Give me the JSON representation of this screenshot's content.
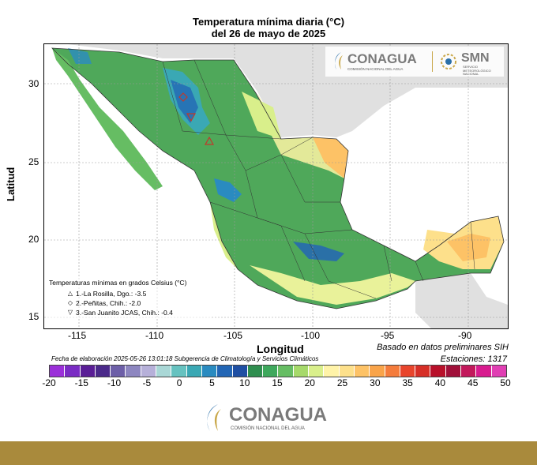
{
  "map": {
    "title_line1": "Temperatura mínima diaria (°C)",
    "title_line2": "del 26 de mayo de 2025",
    "ylabel": "Latitud",
    "xlabel": "Longitud",
    "y_ticks": [
      "30",
      "25",
      "20",
      "15"
    ],
    "x_ticks": [
      "-115",
      "-110",
      "-105",
      "-100",
      "-95",
      "-90"
    ],
    "legend_title": "Temperaturas mínimas en grados Celsius (°C)",
    "stations": [
      {
        "symbol": "△",
        "label": "1.-La Rosilla, Dgo.: -3.5"
      },
      {
        "symbol": "◇",
        "label": "2.-Peñitas, Chih.: -2.0"
      },
      {
        "symbol": "▽",
        "label": "3.-San Juanito JCAS, Chih.: -0.4"
      }
    ],
    "basis": "Basado en datos preliminares SIH",
    "stations_count": "Estaciones:  1317",
    "elaboration": "Fecha de elaboración 2025-05-26 13:01:18 Subgerencia de Climatología y Servicios Climáticos"
  },
  "colorbar": {
    "colors": [
      "#9b30d9",
      "#7a2cc4",
      "#5a1e96",
      "#4b2a8a",
      "#6d5fa8",
      "#8d86c0",
      "#b6b0d9",
      "#a9d7d6",
      "#66c2c0",
      "#3aa8b4",
      "#2a8bc0",
      "#2366b5",
      "#1f4fa3",
      "#2f8e4f",
      "#3ea85c",
      "#66bd63",
      "#a6d96a",
      "#d9ef8b",
      "#fff3a8",
      "#fde08b",
      "#fdc266",
      "#f9a44a",
      "#f47c3c",
      "#e8452c",
      "#d62f27",
      "#b8102a",
      "#a0103a",
      "#c2185b",
      "#d81b8f",
      "#e03fb3"
    ],
    "ticks": [
      "-20",
      "-15",
      "-10",
      "-5",
      "0",
      "5",
      "10",
      "15",
      "20",
      "25",
      "30",
      "35",
      "40",
      "45",
      "50"
    ]
  },
  "logos": {
    "conagua": "CONAGUA",
    "conagua_sub": "COMISIÓN NACIONAL DEL AGUA",
    "smn": "SMN",
    "smn_sub1": "SERVICIO",
    "smn_sub2": "METEOROLÓGICO",
    "smn_sub3": "NACIONAL"
  },
  "footer": {
    "conagua": "CONAGUA",
    "conagua_sub": "COMISIÓN NACIONAL DEL AGUA"
  }
}
